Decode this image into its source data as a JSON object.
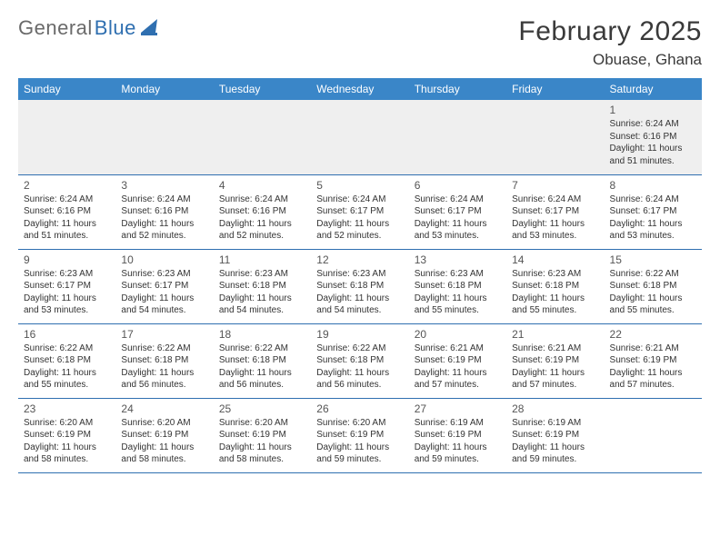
{
  "logo": {
    "part1": "General",
    "part2": "Blue"
  },
  "title": "February 2025",
  "location": "Obuase, Ghana",
  "colors": {
    "brand_blue": "#3a86c8",
    "rule_blue": "#2f6fb0",
    "header_text": "#ffffff",
    "body_text": "#333333",
    "logo_gray": "#6a6a6a",
    "alt_row_bg": "#efefef"
  },
  "weekdays": [
    "Sunday",
    "Monday",
    "Tuesday",
    "Wednesday",
    "Thursday",
    "Friday",
    "Saturday"
  ],
  "weeks": [
    [
      null,
      null,
      null,
      null,
      null,
      null,
      {
        "n": "1",
        "sunrise": "Sunrise: 6:24 AM",
        "sunset": "Sunset: 6:16 PM",
        "daylight": "Daylight: 11 hours and 51 minutes."
      }
    ],
    [
      {
        "n": "2",
        "sunrise": "Sunrise: 6:24 AM",
        "sunset": "Sunset: 6:16 PM",
        "daylight": "Daylight: 11 hours and 51 minutes."
      },
      {
        "n": "3",
        "sunrise": "Sunrise: 6:24 AM",
        "sunset": "Sunset: 6:16 PM",
        "daylight": "Daylight: 11 hours and 52 minutes."
      },
      {
        "n": "4",
        "sunrise": "Sunrise: 6:24 AM",
        "sunset": "Sunset: 6:16 PM",
        "daylight": "Daylight: 11 hours and 52 minutes."
      },
      {
        "n": "5",
        "sunrise": "Sunrise: 6:24 AM",
        "sunset": "Sunset: 6:17 PM",
        "daylight": "Daylight: 11 hours and 52 minutes."
      },
      {
        "n": "6",
        "sunrise": "Sunrise: 6:24 AM",
        "sunset": "Sunset: 6:17 PM",
        "daylight": "Daylight: 11 hours and 53 minutes."
      },
      {
        "n": "7",
        "sunrise": "Sunrise: 6:24 AM",
        "sunset": "Sunset: 6:17 PM",
        "daylight": "Daylight: 11 hours and 53 minutes."
      },
      {
        "n": "8",
        "sunrise": "Sunrise: 6:24 AM",
        "sunset": "Sunset: 6:17 PM",
        "daylight": "Daylight: 11 hours and 53 minutes."
      }
    ],
    [
      {
        "n": "9",
        "sunrise": "Sunrise: 6:23 AM",
        "sunset": "Sunset: 6:17 PM",
        "daylight": "Daylight: 11 hours and 53 minutes."
      },
      {
        "n": "10",
        "sunrise": "Sunrise: 6:23 AM",
        "sunset": "Sunset: 6:17 PM",
        "daylight": "Daylight: 11 hours and 54 minutes."
      },
      {
        "n": "11",
        "sunrise": "Sunrise: 6:23 AM",
        "sunset": "Sunset: 6:18 PM",
        "daylight": "Daylight: 11 hours and 54 minutes."
      },
      {
        "n": "12",
        "sunrise": "Sunrise: 6:23 AM",
        "sunset": "Sunset: 6:18 PM",
        "daylight": "Daylight: 11 hours and 54 minutes."
      },
      {
        "n": "13",
        "sunrise": "Sunrise: 6:23 AM",
        "sunset": "Sunset: 6:18 PM",
        "daylight": "Daylight: 11 hours and 55 minutes."
      },
      {
        "n": "14",
        "sunrise": "Sunrise: 6:23 AM",
        "sunset": "Sunset: 6:18 PM",
        "daylight": "Daylight: 11 hours and 55 minutes."
      },
      {
        "n": "15",
        "sunrise": "Sunrise: 6:22 AM",
        "sunset": "Sunset: 6:18 PM",
        "daylight": "Daylight: 11 hours and 55 minutes."
      }
    ],
    [
      {
        "n": "16",
        "sunrise": "Sunrise: 6:22 AM",
        "sunset": "Sunset: 6:18 PM",
        "daylight": "Daylight: 11 hours and 55 minutes."
      },
      {
        "n": "17",
        "sunrise": "Sunrise: 6:22 AM",
        "sunset": "Sunset: 6:18 PM",
        "daylight": "Daylight: 11 hours and 56 minutes."
      },
      {
        "n": "18",
        "sunrise": "Sunrise: 6:22 AM",
        "sunset": "Sunset: 6:18 PM",
        "daylight": "Daylight: 11 hours and 56 minutes."
      },
      {
        "n": "19",
        "sunrise": "Sunrise: 6:22 AM",
        "sunset": "Sunset: 6:18 PM",
        "daylight": "Daylight: 11 hours and 56 minutes."
      },
      {
        "n": "20",
        "sunrise": "Sunrise: 6:21 AM",
        "sunset": "Sunset: 6:19 PM",
        "daylight": "Daylight: 11 hours and 57 minutes."
      },
      {
        "n": "21",
        "sunrise": "Sunrise: 6:21 AM",
        "sunset": "Sunset: 6:19 PM",
        "daylight": "Daylight: 11 hours and 57 minutes."
      },
      {
        "n": "22",
        "sunrise": "Sunrise: 6:21 AM",
        "sunset": "Sunset: 6:19 PM",
        "daylight": "Daylight: 11 hours and 57 minutes."
      }
    ],
    [
      {
        "n": "23",
        "sunrise": "Sunrise: 6:20 AM",
        "sunset": "Sunset: 6:19 PM",
        "daylight": "Daylight: 11 hours and 58 minutes."
      },
      {
        "n": "24",
        "sunrise": "Sunrise: 6:20 AM",
        "sunset": "Sunset: 6:19 PM",
        "daylight": "Daylight: 11 hours and 58 minutes."
      },
      {
        "n": "25",
        "sunrise": "Sunrise: 6:20 AM",
        "sunset": "Sunset: 6:19 PM",
        "daylight": "Daylight: 11 hours and 58 minutes."
      },
      {
        "n": "26",
        "sunrise": "Sunrise: 6:20 AM",
        "sunset": "Sunset: 6:19 PM",
        "daylight": "Daylight: 11 hours and 59 minutes."
      },
      {
        "n": "27",
        "sunrise": "Sunrise: 6:19 AM",
        "sunset": "Sunset: 6:19 PM",
        "daylight": "Daylight: 11 hours and 59 minutes."
      },
      {
        "n": "28",
        "sunrise": "Sunrise: 6:19 AM",
        "sunset": "Sunset: 6:19 PM",
        "daylight": "Daylight: 11 hours and 59 minutes."
      },
      null
    ]
  ]
}
